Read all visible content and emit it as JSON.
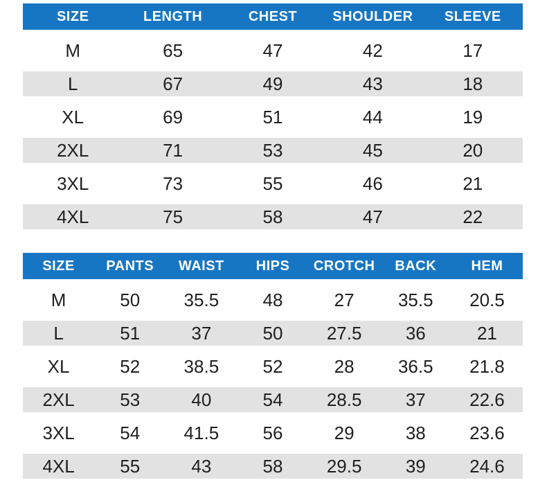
{
  "colors": {
    "header_bg": "#1776c4",
    "header_text": "#ffffff",
    "stripe_bg": "#e2e2e2",
    "row_bg": "#ffffff",
    "cell_text": "#1f1f1f"
  },
  "chart_data": [
    {
      "type": "table",
      "name": "top-garment-size-table",
      "columns": [
        "SIZE",
        "LENGTH",
        "CHEST",
        "SHOULDER",
        "SLEEVE"
      ],
      "rows": [
        [
          "M",
          "65",
          "47",
          "42",
          "17"
        ],
        [
          "L",
          "67",
          "49",
          "43",
          "18"
        ],
        [
          "XL",
          "69",
          "51",
          "44",
          "19"
        ],
        [
          "2XL",
          "71",
          "53",
          "45",
          "20"
        ],
        [
          "3XL",
          "73",
          "55",
          "46",
          "21"
        ],
        [
          "4XL",
          "75",
          "58",
          "47",
          "22"
        ]
      ]
    },
    {
      "type": "table",
      "name": "pants-size-table",
      "columns": [
        "SIZE",
        "PANTS",
        "WAIST",
        "HIPS",
        "CROTCH",
        "BACK",
        "HEM"
      ],
      "rows": [
        [
          "M",
          "50",
          "35.5",
          "48",
          "27",
          "35.5",
          "20.5"
        ],
        [
          "L",
          "51",
          "37",
          "50",
          "27.5",
          "36",
          "21"
        ],
        [
          "XL",
          "52",
          "38.5",
          "52",
          "28",
          "36.5",
          "21.8"
        ],
        [
          "2XL",
          "53",
          "40",
          "54",
          "28.5",
          "37",
          "22.6"
        ],
        [
          "3XL",
          "54",
          "41.5",
          "56",
          "29",
          "38",
          "23.6"
        ],
        [
          "4XL",
          "55",
          "43",
          "58",
          "29.5",
          "39",
          "24.6"
        ]
      ]
    }
  ]
}
